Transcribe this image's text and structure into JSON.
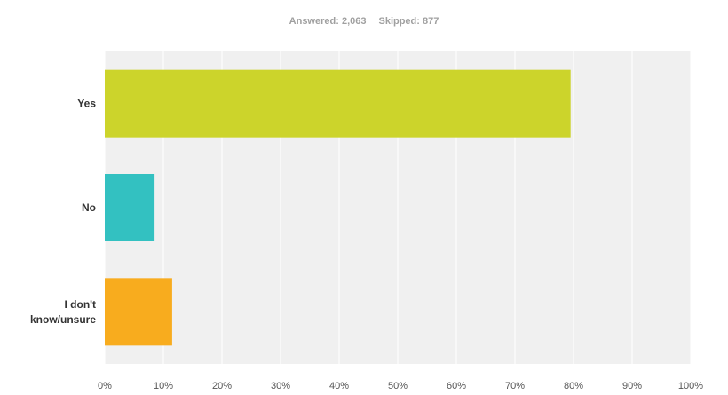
{
  "summary": {
    "answered": "Answered: 2,063",
    "skipped": "Skipped: 877"
  },
  "chart_data": {
    "type": "bar",
    "orientation": "horizontal",
    "categories": [
      [
        "Yes"
      ],
      [
        "No"
      ],
      [
        "I don't",
        "know/unsure"
      ]
    ],
    "values": [
      79.5,
      8.5,
      11.5
    ],
    "unit": "%",
    "xlim": [
      0,
      100
    ],
    "x_ticks": [
      "0%",
      "10%",
      "20%",
      "30%",
      "40%",
      "50%",
      "60%",
      "70%",
      "80%",
      "90%",
      "100%"
    ],
    "colors": [
      "#ccd42b",
      "#33c1c1",
      "#f8ac1e"
    ],
    "background": "#f0f0f0",
    "grid": true,
    "grid_color": "#ffffff"
  }
}
